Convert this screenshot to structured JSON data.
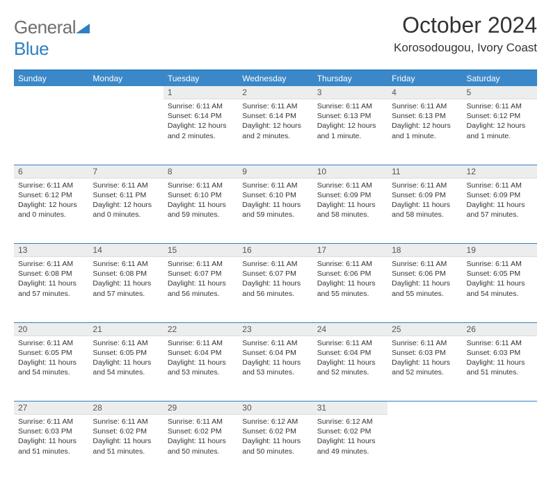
{
  "brand": {
    "name_a": "General",
    "name_b": "Blue"
  },
  "title": "October 2024",
  "location": "Korosodougou, Ivory Coast",
  "colors": {
    "header_bg": "#3b88c9",
    "header_text": "#ffffff",
    "rule": "#2f7fc2",
    "daynum_bg": "#eceded",
    "text": "#333333",
    "logo_grey": "#6e6e6e",
    "logo_blue": "#2f7fc2"
  },
  "weekdays": [
    "Sunday",
    "Monday",
    "Tuesday",
    "Wednesday",
    "Thursday",
    "Friday",
    "Saturday"
  ],
  "weeks": [
    [
      null,
      null,
      {
        "n": "1",
        "sr": "Sunrise: 6:11 AM",
        "ss": "Sunset: 6:14 PM",
        "dl": "Daylight: 12 hours and 2 minutes."
      },
      {
        "n": "2",
        "sr": "Sunrise: 6:11 AM",
        "ss": "Sunset: 6:14 PM",
        "dl": "Daylight: 12 hours and 2 minutes."
      },
      {
        "n": "3",
        "sr": "Sunrise: 6:11 AM",
        "ss": "Sunset: 6:13 PM",
        "dl": "Daylight: 12 hours and 1 minute."
      },
      {
        "n": "4",
        "sr": "Sunrise: 6:11 AM",
        "ss": "Sunset: 6:13 PM",
        "dl": "Daylight: 12 hours and 1 minute."
      },
      {
        "n": "5",
        "sr": "Sunrise: 6:11 AM",
        "ss": "Sunset: 6:12 PM",
        "dl": "Daylight: 12 hours and 1 minute."
      }
    ],
    [
      {
        "n": "6",
        "sr": "Sunrise: 6:11 AM",
        "ss": "Sunset: 6:12 PM",
        "dl": "Daylight: 12 hours and 0 minutes."
      },
      {
        "n": "7",
        "sr": "Sunrise: 6:11 AM",
        "ss": "Sunset: 6:11 PM",
        "dl": "Daylight: 12 hours and 0 minutes."
      },
      {
        "n": "8",
        "sr": "Sunrise: 6:11 AM",
        "ss": "Sunset: 6:10 PM",
        "dl": "Daylight: 11 hours and 59 minutes."
      },
      {
        "n": "9",
        "sr": "Sunrise: 6:11 AM",
        "ss": "Sunset: 6:10 PM",
        "dl": "Daylight: 11 hours and 59 minutes."
      },
      {
        "n": "10",
        "sr": "Sunrise: 6:11 AM",
        "ss": "Sunset: 6:09 PM",
        "dl": "Daylight: 11 hours and 58 minutes."
      },
      {
        "n": "11",
        "sr": "Sunrise: 6:11 AM",
        "ss": "Sunset: 6:09 PM",
        "dl": "Daylight: 11 hours and 58 minutes."
      },
      {
        "n": "12",
        "sr": "Sunrise: 6:11 AM",
        "ss": "Sunset: 6:09 PM",
        "dl": "Daylight: 11 hours and 57 minutes."
      }
    ],
    [
      {
        "n": "13",
        "sr": "Sunrise: 6:11 AM",
        "ss": "Sunset: 6:08 PM",
        "dl": "Daylight: 11 hours and 57 minutes."
      },
      {
        "n": "14",
        "sr": "Sunrise: 6:11 AM",
        "ss": "Sunset: 6:08 PM",
        "dl": "Daylight: 11 hours and 57 minutes."
      },
      {
        "n": "15",
        "sr": "Sunrise: 6:11 AM",
        "ss": "Sunset: 6:07 PM",
        "dl": "Daylight: 11 hours and 56 minutes."
      },
      {
        "n": "16",
        "sr": "Sunrise: 6:11 AM",
        "ss": "Sunset: 6:07 PM",
        "dl": "Daylight: 11 hours and 56 minutes."
      },
      {
        "n": "17",
        "sr": "Sunrise: 6:11 AM",
        "ss": "Sunset: 6:06 PM",
        "dl": "Daylight: 11 hours and 55 minutes."
      },
      {
        "n": "18",
        "sr": "Sunrise: 6:11 AM",
        "ss": "Sunset: 6:06 PM",
        "dl": "Daylight: 11 hours and 55 minutes."
      },
      {
        "n": "19",
        "sr": "Sunrise: 6:11 AM",
        "ss": "Sunset: 6:05 PM",
        "dl": "Daylight: 11 hours and 54 minutes."
      }
    ],
    [
      {
        "n": "20",
        "sr": "Sunrise: 6:11 AM",
        "ss": "Sunset: 6:05 PM",
        "dl": "Daylight: 11 hours and 54 minutes."
      },
      {
        "n": "21",
        "sr": "Sunrise: 6:11 AM",
        "ss": "Sunset: 6:05 PM",
        "dl": "Daylight: 11 hours and 54 minutes."
      },
      {
        "n": "22",
        "sr": "Sunrise: 6:11 AM",
        "ss": "Sunset: 6:04 PM",
        "dl": "Daylight: 11 hours and 53 minutes."
      },
      {
        "n": "23",
        "sr": "Sunrise: 6:11 AM",
        "ss": "Sunset: 6:04 PM",
        "dl": "Daylight: 11 hours and 53 minutes."
      },
      {
        "n": "24",
        "sr": "Sunrise: 6:11 AM",
        "ss": "Sunset: 6:04 PM",
        "dl": "Daylight: 11 hours and 52 minutes."
      },
      {
        "n": "25",
        "sr": "Sunrise: 6:11 AM",
        "ss": "Sunset: 6:03 PM",
        "dl": "Daylight: 11 hours and 52 minutes."
      },
      {
        "n": "26",
        "sr": "Sunrise: 6:11 AM",
        "ss": "Sunset: 6:03 PM",
        "dl": "Daylight: 11 hours and 51 minutes."
      }
    ],
    [
      {
        "n": "27",
        "sr": "Sunrise: 6:11 AM",
        "ss": "Sunset: 6:03 PM",
        "dl": "Daylight: 11 hours and 51 minutes."
      },
      {
        "n": "28",
        "sr": "Sunrise: 6:11 AM",
        "ss": "Sunset: 6:02 PM",
        "dl": "Daylight: 11 hours and 51 minutes."
      },
      {
        "n": "29",
        "sr": "Sunrise: 6:11 AM",
        "ss": "Sunset: 6:02 PM",
        "dl": "Daylight: 11 hours and 50 minutes."
      },
      {
        "n": "30",
        "sr": "Sunrise: 6:12 AM",
        "ss": "Sunset: 6:02 PM",
        "dl": "Daylight: 11 hours and 50 minutes."
      },
      {
        "n": "31",
        "sr": "Sunrise: 6:12 AM",
        "ss": "Sunset: 6:02 PM",
        "dl": "Daylight: 11 hours and 49 minutes."
      },
      null,
      null
    ]
  ]
}
